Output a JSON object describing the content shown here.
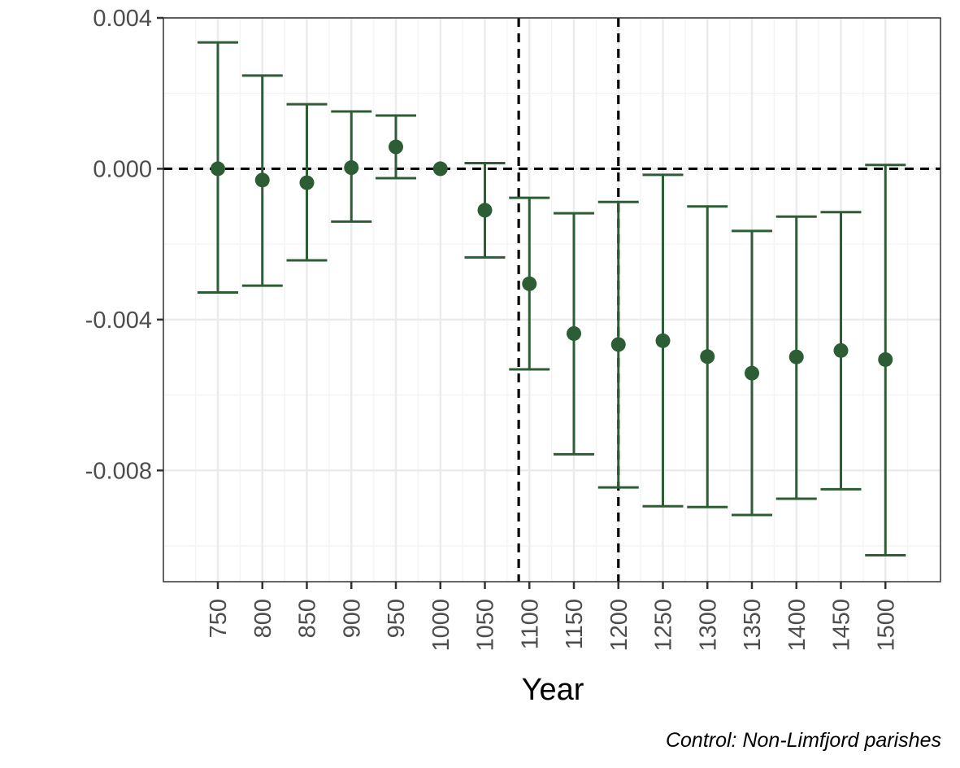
{
  "chart_data": {
    "type": "scatter",
    "subtype": "point-errorbar",
    "title": "",
    "xlabel": "Year",
    "ylabel": "",
    "caption": "Control: Non-Limfjord parishes",
    "categories": [
      "750",
      "800",
      "850",
      "900",
      "950",
      "1000",
      "1050",
      "1100",
      "1150",
      "1200",
      "1250",
      "1300",
      "1350",
      "1400",
      "1450",
      "1500"
    ],
    "series": [
      {
        "estimate": [
          0.0,
          -0.0003,
          -0.00037,
          3e-05,
          0.00058,
          0.0,
          -0.0011,
          -0.00305,
          -0.00437,
          -0.00466,
          -0.00456,
          -0.00498,
          -0.00542,
          -0.00499,
          -0.00482,
          -0.00506
        ],
        "lower": [
          -0.00328,
          -0.0031,
          -0.00243,
          -0.0014,
          -0.00025,
          0.0,
          -0.00235,
          -0.00532,
          -0.00757,
          -0.00845,
          -0.00895,
          -0.00897,
          -0.00918,
          -0.00875,
          -0.0085,
          -0.01025
        ],
        "upper": [
          0.00335,
          0.00247,
          0.00171,
          0.00152,
          0.00141,
          0.0,
          0.00015,
          -0.00077,
          -0.00118,
          -0.00088,
          -0.00016,
          -0.001,
          -0.00165,
          -0.00127,
          -0.00115,
          0.0001
        ]
      }
    ],
    "yticks": [
      0.004,
      0.0,
      -0.004,
      -0.008
    ],
    "ytick_labels": [
      "0.004",
      "0.000",
      "-0.004",
      "-0.008"
    ],
    "ylim": [
      -0.01095,
      0.004
    ],
    "hline": 0.0,
    "vlines": [
      1088,
      1200
    ],
    "grid": true,
    "legend": "none",
    "colors": {
      "series": "#2d5d34",
      "reference": "#000000",
      "grid_major": "#ebebeb",
      "grid_minor": "#f4f4f4",
      "panel_border": "#333333"
    }
  }
}
